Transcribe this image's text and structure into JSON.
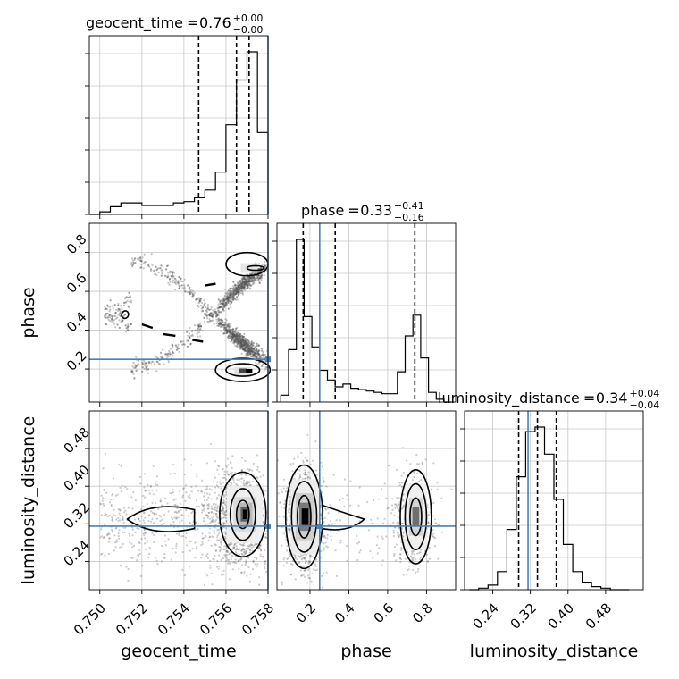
{
  "chart_data": {
    "type": "corner",
    "parameters": [
      {
        "name": "geocent_time",
        "label": "geocent_time",
        "median": "0.76",
        "plus": "+0.00",
        "minus": "−0.00",
        "range": [
          0.7495,
          0.758
        ],
        "ticks": [
          "0.750",
          "0.752",
          "0.754",
          "0.756",
          "0.758"
        ],
        "tick_values": [
          0.75,
          0.752,
          0.754,
          0.756,
          0.758
        ],
        "quantiles": [
          0.7547,
          0.7565,
          0.7571
        ],
        "truth": 0.758
      },
      {
        "name": "phase",
        "label": "phase",
        "median": "0.33",
        "plus": "+0.41",
        "minus": "−0.16",
        "range": [
          0.03,
          0.95
        ],
        "ticks": [
          "0.2",
          "0.4",
          "0.6",
          "0.8"
        ],
        "tick_values": [
          0.2,
          0.4,
          0.6,
          0.8
        ],
        "quantiles": [
          0.165,
          0.33,
          0.74
        ],
        "truth": 0.25
      },
      {
        "name": "luminosity_distance",
        "label": "luminosity_distance",
        "median": "0.34",
        "plus": "+0.04",
        "minus": "−0.04",
        "range": [
          0.18,
          0.56
        ],
        "ticks": [
          "0.24",
          "0.32",
          "0.40",
          "0.48"
        ],
        "tick_values": [
          0.24,
          0.32,
          0.4,
          0.48
        ],
        "quantiles": [
          0.295,
          0.335,
          0.375
        ],
        "truth": 0.315
      }
    ],
    "histograms": {
      "geocent_time": {
        "bins": [
          0.7495,
          0.75,
          0.7505,
          0.751,
          0.7515,
          0.752,
          0.7525,
          0.753,
          0.7535,
          0.754,
          0.7545,
          0.755,
          0.7555,
          0.756,
          0.7565,
          0.757,
          0.7575,
          0.758
        ],
        "counts": [
          0.0,
          2,
          6,
          9,
          9,
          7,
          7,
          7,
          9,
          10,
          13,
          19,
          33,
          70,
          105,
          127,
          64
        ]
      },
      "phase": {
        "bins": [
          0.05,
          0.09,
          0.13,
          0.17,
          0.21,
          0.25,
          0.29,
          0.33,
          0.37,
          0.41,
          0.45,
          0.49,
          0.53,
          0.57,
          0.61,
          0.65,
          0.69,
          0.73,
          0.77,
          0.81,
          0.85,
          0.89,
          0.93
        ],
        "counts": [
          5,
          38,
          118,
          62,
          40,
          23,
          16,
          11,
          13,
          10,
          9,
          8,
          7,
          6,
          6,
          22,
          48,
          63,
          32,
          7,
          2,
          0
        ]
      },
      "luminosity_distance": {
        "bins": [
          0.19,
          0.21,
          0.23,
          0.25,
          0.27,
          0.29,
          0.31,
          0.33,
          0.35,
          0.37,
          0.39,
          0.41,
          0.43,
          0.45,
          0.47,
          0.49,
          0.51,
          0.53
        ],
        "counts": [
          0,
          1,
          3,
          12,
          40,
          75,
          105,
          108,
          90,
          60,
          30,
          12,
          5,
          2,
          1,
          0,
          0
        ]
      }
    },
    "truth_color": "#4682b4",
    "line_color": "#000000",
    "grid": true
  }
}
